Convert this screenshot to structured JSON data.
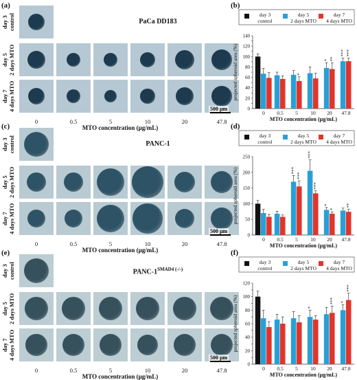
{
  "panels": {
    "a": "(a)",
    "b": "(b)",
    "c": "(c)",
    "d": "(d)",
    "e": "(e)",
    "f": "(f)"
  },
  "image_rows": [
    {
      "title": "PaCa DD183",
      "title_sup": "",
      "control_label": [
        "day 3",
        "control"
      ],
      "row_labels": [
        [
          "day 5",
          "2 days MTO"
        ],
        [
          "day 7",
          "4 days MTO"
        ]
      ],
      "tint": "#b6c8d4",
      "blob": "#1d3a4e",
      "sizes_day5": [
        0.55,
        0.42,
        0.42,
        0.46,
        0.58,
        0.62
      ],
      "sizes_day7": [
        0.5,
        0.42,
        0.38,
        0.44,
        0.56,
        0.62
      ],
      "control_size": 0.5
    },
    {
      "title": "PANC-1",
      "title_sup": "",
      "control_label": [
        "day 3",
        "control"
      ],
      "row_labels": [
        [
          "day 5",
          "2 days MTO"
        ],
        [
          "day 7",
          "4 days MTO"
        ]
      ],
      "tint": "#b8cad2",
      "blob": "#2f5366",
      "sizes_day5": [
        0.58,
        0.58,
        0.85,
        0.95,
        0.62,
        0.68
      ],
      "sizes_day7": [
        0.55,
        0.56,
        0.85,
        0.9,
        0.6,
        0.66
      ],
      "control_size": 0.75
    },
    {
      "title": "PANC-1",
      "title_sup": "SMAD4 (-/-)",
      "control_label": [
        "day 3",
        "control"
      ],
      "row_labels": [
        [
          "day 5",
          "2 days MTO"
        ],
        [
          "day 7",
          "4 days MTO"
        ]
      ],
      "tint": "#bccdd3",
      "blob": "#36505c",
      "sizes_day5": [
        0.7,
        0.7,
        0.72,
        0.7,
        0.7,
        0.72
      ],
      "sizes_day7": [
        0.65,
        0.66,
        0.66,
        0.64,
        0.66,
        0.68
      ],
      "control_size": 0.75
    }
  ],
  "image_xticks": [
    "0",
    "0.5",
    "5",
    "10",
    "20",
    "47.8"
  ],
  "image_xtitle": "MTO concentration (μg/mL)",
  "scalebar_text": "500 μm",
  "chart_data": [
    {
      "type": "bar",
      "categories": [
        "0",
        "0.5",
        "5",
        "10",
        "20",
        "47.8"
      ],
      "control": {
        "name": "day 3 control",
        "values": [
          100,
          null,
          null,
          null,
          null,
          null
        ],
        "errors": [
          5,
          null,
          null,
          null,
          null,
          null
        ]
      },
      "series": [
        {
          "name": "day 5 2 days MTO",
          "values": [
            67,
            64,
            65,
            68,
            78,
            91
          ],
          "errors": [
            10,
            6,
            8,
            12,
            10,
            6
          ]
        },
        {
          "name": "day 7 4 days MTO",
          "values": [
            59,
            57,
            53,
            58,
            76,
            91
          ],
          "errors": [
            10,
            6,
            8,
            10,
            12,
            6
          ]
        }
      ],
      "annotations_s1": [
        "",
        "",
        "",
        "",
        "*",
        "***"
      ],
      "annotations_s2": [
        "",
        "",
        "*",
        "",
        "**",
        "***"
      ],
      "xlabel": "MTO concentration (μg/mL)",
      "ylabel": "projected spheroid area (%)",
      "ylim": [
        0,
        140
      ],
      "yticks": [
        0,
        10,
        20,
        30,
        40,
        50,
        60,
        70,
        80,
        90,
        100,
        110,
        120,
        130,
        140
      ],
      "legend": [
        "day 3",
        "control",
        "day 5",
        "2 days MTO",
        "day 7",
        "4 days MTO"
      ],
      "colors": {
        "control": "#111111",
        "s1": "#2a9fd6",
        "s2": "#e0352b"
      }
    },
    {
      "type": "bar",
      "categories": [
        "0",
        "0.5",
        "5",
        "10",
        "20",
        "47.8"
      ],
      "control": {
        "name": "day 3 control",
        "values": [
          100,
          null,
          null,
          null,
          null,
          null
        ],
        "errors": [
          10,
          null,
          null,
          null,
          null,
          null
        ]
      },
      "series": [
        {
          "name": "day 5 2 days MTO",
          "values": [
            70,
            68,
            170,
            205,
            80,
            78
          ],
          "errors": [
            12,
            8,
            20,
            35,
            8,
            8
          ]
        },
        {
          "name": "day 7 4 days MTO",
          "values": [
            58,
            58,
            155,
            133,
            68,
            74
          ],
          "errors": [
            8,
            6,
            18,
            8,
            6,
            8
          ]
        }
      ],
      "annotations_s1": [
        "",
        "",
        "***",
        "***",
        "*",
        ""
      ],
      "annotations_s2": [
        "",
        "",
        "***",
        "***",
        "*",
        "**"
      ],
      "xlabel": "MTO concentration (μg/mL)",
      "ylabel": "projected spheroid area (%)",
      "ylim": [
        0,
        250
      ],
      "yticks": [
        0,
        50,
        100,
        150,
        200,
        250
      ],
      "legend": [
        "day 3",
        "control",
        "day 5",
        "2 days MTO",
        "day 7",
        "4 days MTO"
      ],
      "colors": {
        "control": "#111111",
        "s1": "#2a9fd6",
        "s2": "#e0352b"
      }
    },
    {
      "type": "bar",
      "categories": [
        "0",
        "0.5",
        "5",
        "10",
        "20",
        "47.8"
      ],
      "control": {
        "name": "day 3 control",
        "values": [
          100,
          null,
          null,
          null,
          null,
          null
        ],
        "errors": [
          8,
          null,
          null,
          null,
          null,
          null
        ]
      },
      "series": [
        {
          "name": "day 5 2 days MTO",
          "values": [
            68,
            66,
            68,
            70,
            74,
            80
          ],
          "errors": [
            12,
            8,
            10,
            10,
            10,
            8
          ]
        },
        {
          "name": "day 7 4 days MTO",
          "values": [
            55,
            60,
            62,
            66,
            76,
            95
          ],
          "errors": [
            8,
            10,
            10,
            6,
            10,
            10
          ]
        }
      ],
      "annotations_s1": [
        "",
        "",
        "",
        "*",
        "",
        "*"
      ],
      "annotations_s2": [
        "",
        "",
        "",
        "",
        "***",
        "***"
      ],
      "xlabel": "MTO concentration (μg/mL)",
      "ylabel": "projected spheroid area (%)",
      "ylim": [
        0,
        120
      ],
      "yticks": [
        0,
        10,
        20,
        30,
        40,
        50,
        60,
        70,
        80,
        90,
        100,
        110,
        120
      ],
      "legend": [
        "day 3",
        "control",
        "day 5",
        "2 days MTO",
        "day 7",
        "4 days MTO"
      ],
      "colors": {
        "control": "#111111",
        "s1": "#2a9fd6",
        "s2": "#e0352b"
      }
    }
  ]
}
